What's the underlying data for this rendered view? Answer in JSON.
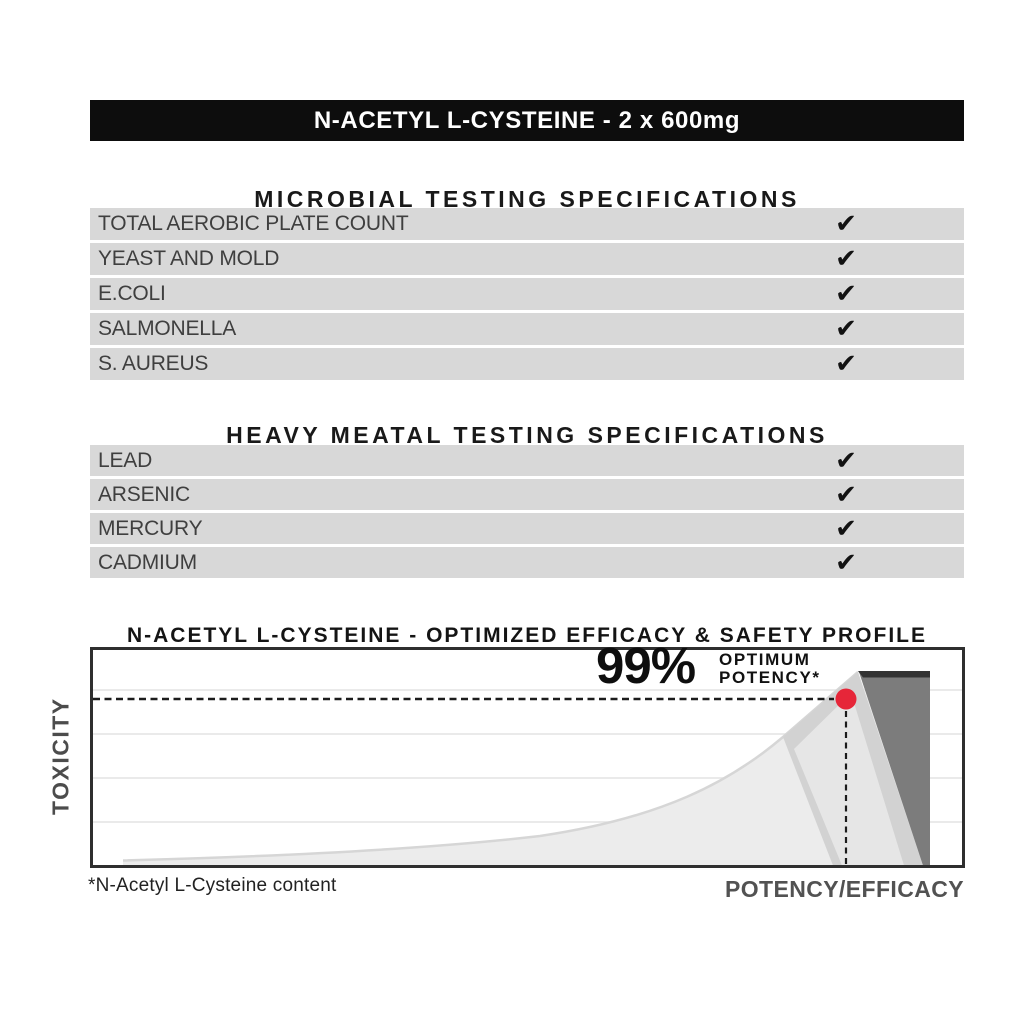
{
  "banner": {
    "title": "N-ACETYL L-CYSTEINE - 2 x 600mg",
    "bg": "#0d0d0d",
    "fg": "#ffffff"
  },
  "check_glyph": "✔",
  "microbial": {
    "heading": "MICROBIAL TESTING SPECIFICATIONS",
    "rows": [
      {
        "label": "TOTAL AEROBIC PLATE COUNT",
        "passed": true
      },
      {
        "label": "YEAST AND MOLD",
        "passed": true
      },
      {
        "label": "E.COLI",
        "passed": true
      },
      {
        "label": "SALMONELLA",
        "passed": true
      },
      {
        "label": "S. AUREUS",
        "passed": true
      }
    ]
  },
  "heavy_metal": {
    "heading": "HEAVY MEATAL TESTING SPECIFICATIONS",
    "rows": [
      {
        "label": "LEAD",
        "passed": true
      },
      {
        "label": "ARSENIC",
        "passed": true
      },
      {
        "label": "MERCURY",
        "passed": true
      },
      {
        "label": "CADMIUM",
        "passed": true
      }
    ]
  },
  "chart": {
    "heading": "N-ACETYL L-CYSTEINE - OPTIMIZED EFFICACY & SAFETY PROFILE",
    "y_axis_label": "TOXICITY",
    "x_axis_label": "POTENCY/EFFICACY",
    "annotation_value": "99%",
    "annotation_line1": "OPTIMUM",
    "annotation_line2": "POTENCY*",
    "footnote": "*N-Acetyl L-Cysteine content",
    "colors": {
      "row_bg": "#d8d8d8",
      "area_light": "#ececec",
      "area_light_stroke": "#d6d6d6",
      "area_medium": "#d2d2d2",
      "area_inner": "#e6e6e6",
      "area_dark": "#7c7c7c",
      "area_dark_top": "#333333",
      "marker_red": "#e62639",
      "grid": "#e4e4e4",
      "border": "#2f2f2f",
      "dashed": "#1c1c1c"
    }
  },
  "chart_data": {
    "type": "area",
    "title": "N-ACETYL L-CYSTEINE - OPTIMIZED EFFICACY & SAFETY PROFILE",
    "xlabel": "POTENCY/EFFICACY",
    "ylabel": "TOXICITY",
    "axis_numeric_labels": false,
    "grid": "horizontal-only",
    "gridline_count": 4,
    "legend": "none",
    "annotations": [
      {
        "text": "99% OPTIMUM POTENCY*",
        "marker": "red-dot",
        "potency_frac": 0.865,
        "toxicity_frac": 0.765,
        "dashed_guides": "horizontal-and-vertical"
      }
    ],
    "series": [
      {
        "name": "toxicity-curve-light-gray",
        "potency_frac": [
          0.04,
          0.19,
          0.36,
          0.5,
          0.64,
          0.72,
          0.79,
          0.88,
          0.96
        ],
        "toxicity_frac": [
          0.03,
          0.05,
          0.08,
          0.14,
          0.31,
          0.47,
          0.59,
          0.89,
          0.01
        ],
        "note": "toxicity stays low, rises sharply approaching peak potency, then drops"
      },
      {
        "name": "optimum-band-medium-gray",
        "potency_frac_range": [
          0.75,
          0.96
        ],
        "peak_potency_frac": 0.88,
        "peak_toxicity_frac": 0.89
      },
      {
        "name": "danger-zone-dark-gray",
        "potency_frac_range": [
          0.78,
          0.96
        ],
        "toxicity_frac_top": 0.89
      }
    ]
  }
}
